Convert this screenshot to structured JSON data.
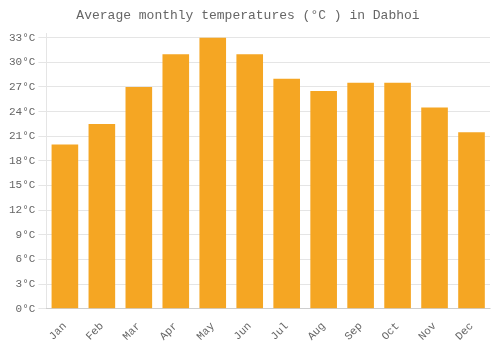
{
  "chart_data": {
    "type": "bar",
    "title": "Average monthly temperatures (°C ) in Dabhoi",
    "categories": [
      "Jan",
      "Feb",
      "Mar",
      "Apr",
      "May",
      "Jun",
      "Jul",
      "Aug",
      "Sep",
      "Oct",
      "Nov",
      "Dec"
    ],
    "values": [
      20.0,
      22.5,
      27.0,
      31.0,
      33.0,
      31.0,
      28.0,
      26.5,
      27.5,
      27.5,
      24.5,
      21.5
    ],
    "color": "#F5A623",
    "ylim": [
      0,
      33.5
    ],
    "yticks": [
      {
        "value": 0,
        "label": "0°C"
      },
      {
        "value": 3,
        "label": "3°C"
      },
      {
        "value": 6,
        "label": "6°C"
      },
      {
        "value": 9,
        "label": "9°C"
      },
      {
        "value": 12,
        "label": "12°C"
      },
      {
        "value": 15,
        "label": "15°C"
      },
      {
        "value": 18,
        "label": "18°C"
      },
      {
        "value": 21,
        "label": "21°C"
      },
      {
        "value": 24,
        "label": "24°C"
      },
      {
        "value": 27,
        "label": "27°C"
      },
      {
        "value": 30,
        "label": "30°C"
      },
      {
        "value": 33,
        "label": "33°C"
      }
    ],
    "grid": true
  }
}
